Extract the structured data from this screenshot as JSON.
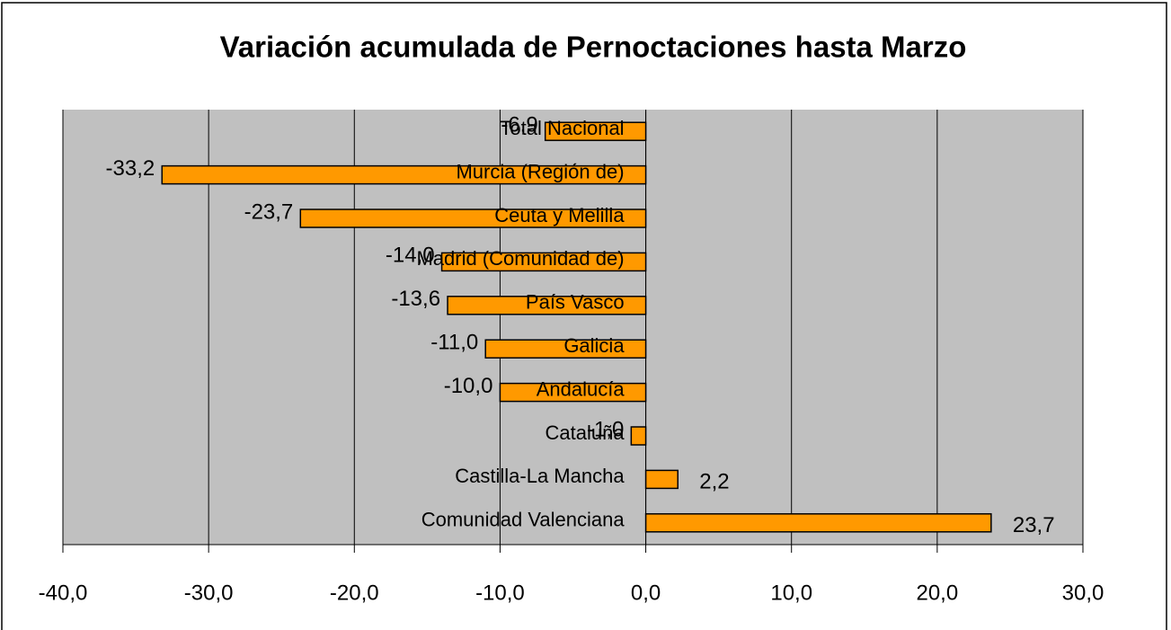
{
  "chart_data": {
    "type": "bar",
    "orientation": "horizontal",
    "title": "Variación acumulada de Pernoctaciones hasta Marzo",
    "categories": [
      "Total Nacional",
      "Murcia (Región de)",
      "Ceuta y Melilla",
      "Madrid (Comunidad de)",
      "País Vasco",
      "Galicia",
      "Andalucía",
      "Cataluña",
      "Castilla-La Mancha",
      "Comunidad Valenciana"
    ],
    "values": [
      -6.9,
      -33.2,
      -23.7,
      -14.0,
      -13.6,
      -11.0,
      -10.0,
      -1.0,
      2.2,
      23.7
    ],
    "value_labels": [
      "-6,9",
      "-33,2",
      "-23,7",
      "-14,0",
      "-13,6",
      "-11,0",
      "-10,0",
      "-1,0",
      "2,2",
      "23,7"
    ],
    "color": "#ff9900",
    "xlim": [
      -40,
      30
    ],
    "xticks": [
      {
        "value": -40,
        "label": "-40,0"
      },
      {
        "value": -30,
        "label": "-30,0"
      },
      {
        "value": -20,
        "label": "-20,0"
      },
      {
        "value": -10,
        "label": "-10,0"
      },
      {
        "value": 0,
        "label": "0,0"
      },
      {
        "value": 10,
        "label": "10,0"
      },
      {
        "value": 20,
        "label": "20,0"
      },
      {
        "value": 30,
        "label": "30,0"
      }
    ],
    "grid": true
  }
}
